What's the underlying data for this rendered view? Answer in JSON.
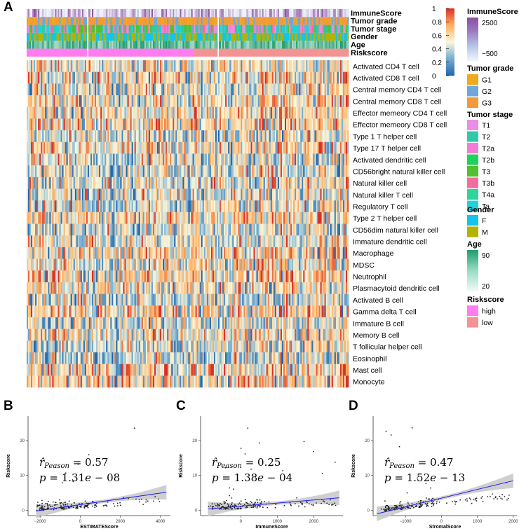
{
  "panels": {
    "a": "A",
    "b": "B",
    "c": "C",
    "d": "D"
  },
  "colors": {
    "heat_low": "#2166ac",
    "heat_mid": "#fbf7dc",
    "heat_high": "#d73027",
    "immune_low": "#eef3fb",
    "immune_high": "#8a4f9f",
    "grade": [
      "#f0a91c",
      "#6fa7dd",
      "#f39a39"
    ],
    "stage": [
      "#e98ee8",
      "#31c9a9",
      "#f57bd8",
      "#20d25a",
      "#52c12f",
      "#f06f9f",
      "#2fd49c",
      "#22d2d6"
    ],
    "gender": [
      "#14c4ec",
      "#b3b300"
    ],
    "age_low": "#eefaf5",
    "age_high": "#1e9c6b",
    "risk": [
      "#ff7df0",
      "#f49393"
    ],
    "regression_line": "#1a1aff",
    "ci_band": "#c7c7c7"
  },
  "annotation_rows": [
    "ImmuneScore",
    "Tumor grade",
    "Tumor stage",
    "Gender",
    "Age",
    "Riskscore"
  ],
  "cell_types": [
    "Activated CD4 T cell",
    "Activated CD8 T cell",
    "Central memory CD4 T cell",
    "Central memory CD8 T cell",
    "Effector memeory CD4 T cell",
    "Effector memeory CD8 T cell",
    "Type 1 T helper cell",
    "Type 17 T helper cell",
    "Activated dendritic cell",
    "CD56bright natural killer cell",
    "Natural killer cell",
    "Natural killer T cell",
    "Regulatory T cell",
    "Type 2 T helper cell",
    "CD56dim natural killer cell",
    "Immature dendritic cell",
    "Macrophage",
    "MDSC",
    "Neutrophil",
    "Plasmacytoid dendritic cell",
    "Activated B cell",
    "Gamma delta T cell",
    "Immature B cell",
    "Memory B cell",
    "T follicular helper cell",
    "Eosinophil",
    "Mast cell",
    "Monocyte"
  ],
  "legend": {
    "colorbar_ticks": [
      "1",
      "0.8",
      "0.6",
      "0.4",
      "0.2",
      "0"
    ],
    "immune": {
      "title": "ImmuneScore",
      "high": "2500",
      "low": "−500"
    },
    "grade": {
      "title": "Tumor grade",
      "items": [
        "G1",
        "G2",
        "G3"
      ]
    },
    "stage": {
      "title": "Tumor stage",
      "items": [
        "T1",
        "T2",
        "T2a",
        "T2b",
        "T3",
        "T3b",
        "T4a",
        "Ta"
      ]
    },
    "gender": {
      "title": "Gender",
      "items": [
        "F",
        "M"
      ]
    },
    "age": {
      "title": "Age",
      "high": "90",
      "low": "20"
    },
    "risk": {
      "title": "Riskscore",
      "items": [
        "high",
        "low"
      ]
    }
  },
  "chart_data": [
    {
      "type": "heatmap",
      "panel": "A",
      "rows": 28,
      "columns": 227,
      "value_range": [
        0,
        1
      ],
      "group_break_columns": [
        43,
        135
      ],
      "note": "Cell values are z-score-like enrichment scaled 0-1; generated pattern approximates the figure."
    },
    {
      "type": "scatter",
      "panel": "B",
      "xlabel": "ESTIMATEScore",
      "ylabel": "Riskscore",
      "xlim": [
        -2600,
        4500
      ],
      "ylim": [
        -1.5,
        27
      ],
      "xticks": [
        -2000,
        0,
        2000,
        4000
      ],
      "yticks": [
        0,
        10,
        20
      ],
      "xtick_labels": [
        "−2000",
        "0",
        "2000",
        "4000"
      ],
      "yticks_labels": [
        "0",
        "10",
        "20"
      ],
      "annotation": {
        "r_label": "Peason",
        "r": "0.57",
        "p_mantissa": "1.31",
        "p_exp": "08"
      },
      "fit": {
        "x": [
          -2200,
          4300
        ],
        "y": [
          -0.2,
          5.2
        ]
      },
      "n_points": 180
    },
    {
      "type": "scatter",
      "panel": "C",
      "xlabel": "ImmuneScore",
      "ylabel": "Riskscore",
      "xlim": [
        -1100,
        2800
      ],
      "ylim": [
        -1.5,
        27
      ],
      "xticks": [
        0,
        1000,
        2000
      ],
      "yticks": [
        0,
        10,
        20
      ],
      "xtick_labels": [
        "0",
        "1000",
        "2000"
      ],
      "yticks_labels": [
        "0",
        "10",
        "20"
      ],
      "annotation": {
        "r_label": "Peason",
        "r": "0.25",
        "p_mantissa": "1.38",
        "p_exp": "04"
      },
      "fit": {
        "x": [
          -900,
          2700
        ],
        "y": [
          0.4,
          3.6
        ]
      },
      "n_points": 180
    },
    {
      "type": "scatter",
      "panel": "D",
      "xlabel": "StromalScore",
      "ylabel": "Riskscore",
      "xlim": [
        -1900,
        2100
      ],
      "ylim": [
        -1.5,
        27
      ],
      "xticks": [
        -1000,
        0,
        1000,
        2000
      ],
      "yticks": [
        0,
        10,
        20
      ],
      "xtick_labels": [
        "−1000",
        "0",
        "1000",
        "2000"
      ],
      "yticks_labels": [
        "0",
        "10",
        "20"
      ],
      "annotation": {
        "r_label": "Peason",
        "r": "0.47",
        "p_mantissa": "1.52",
        "p_exp": "13"
      },
      "fit": {
        "x": [
          -1800,
          2000
        ],
        "y": [
          -1.0,
          8.5
        ]
      },
      "n_points": 180
    }
  ]
}
